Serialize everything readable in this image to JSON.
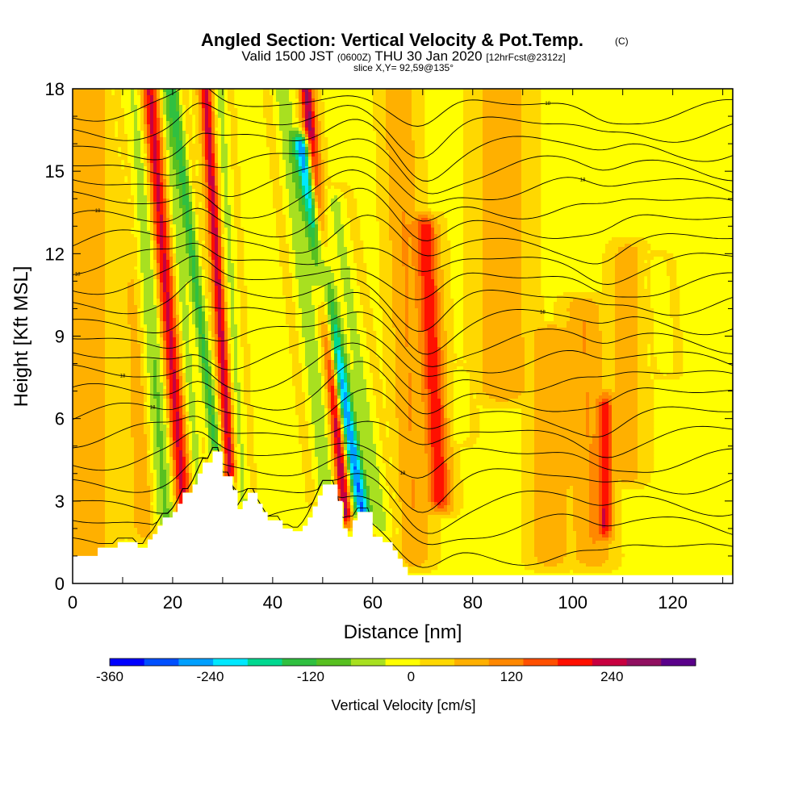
{
  "chart_data": {
    "type": "heatmap",
    "title": "Angled Section: Vertical Velocity & Pot.Temp.",
    "title_unit": "(C)",
    "subtitle_parts": [
      "Valid 1500 JST",
      "(0600Z)",
      "THU 30 Jan 2020",
      "[12hrFcst@2312z]"
    ],
    "slice_text": "slice X,Y= 92,59@135°",
    "xlabel": "Distance [nm]",
    "ylabel": "Height [Kft MSL]",
    "xlim": [
      0,
      132
    ],
    "ylim": [
      0,
      18
    ],
    "x_ticks": [
      "0",
      "20",
      "40",
      "60",
      "80",
      "100",
      "120"
    ],
    "y_ticks": [
      "0",
      "3",
      "6",
      "9",
      "12",
      "15",
      "18"
    ],
    "colorbar": {
      "label": "Vertical Velocity [cm/s]",
      "tick_labels": [
        "-360",
        "-240",
        "-120",
        "0",
        "120",
        "240"
      ],
      "range": [
        -360,
        300
      ],
      "step": 40,
      "colors": [
        "#0000ff",
        "#0050ff",
        "#00a0ff",
        "#00e8ff",
        "#00d890",
        "#30c040",
        "#58c020",
        "#a8e020",
        "#ffff00",
        "#ffd800",
        "#ffb000",
        "#ff8800",
        "#ff5000",
        "#ff1000",
        "#c80040",
        "#901060",
        "#5a008a"
      ]
    },
    "background_color": "#ffff00",
    "velocity_features": [
      {
        "x": 22.5,
        "z_bottom": 2.0,
        "z_top": 18,
        "tilt": 0.45,
        "width": 1.7,
        "peak": 200
      },
      {
        "x": 19.0,
        "z_bottom": 2.0,
        "z_top": 18,
        "tilt": 0.45,
        "width": 2.4,
        "peak": -110
      },
      {
        "x": 14.5,
        "z_bottom": 2.0,
        "z_top": 18,
        "tilt": 0.2,
        "width": 2.0,
        "peak": 50
      },
      {
        "x": 25.5,
        "z_bottom": 2.5,
        "z_top": 18,
        "tilt": 0.45,
        "width": 1.3,
        "peak": -80
      },
      {
        "x": 31.5,
        "z_bottom": 4.0,
        "z_top": 18,
        "tilt": 0.35,
        "width": 1.2,
        "peak": 200
      },
      {
        "x": 28.8,
        "z_bottom": 4.5,
        "z_top": 18,
        "tilt": 0.65,
        "width": 1.3,
        "peak": -150
      },
      {
        "x": 34.0,
        "z_bottom": 3.0,
        "z_top": 18,
        "tilt": 0.3,
        "width": 1.4,
        "peak": -70
      },
      {
        "x": 54.5,
        "z_bottom": 2.5,
        "z_top": 18,
        "tilt": 0.5,
        "width": 1.3,
        "peak": 230
      },
      {
        "x": 58.0,
        "z_bottom": 2.5,
        "z_top": 16,
        "tilt": 0.9,
        "width": 1.6,
        "peak": -300
      },
      {
        "x": 51.0,
        "z_bottom": 3.0,
        "z_top": 18,
        "tilt": 0.6,
        "width": 2.0,
        "peak": -90
      },
      {
        "x": 62.0,
        "z_bottom": 2.0,
        "z_top": 14,
        "tilt": 0.8,
        "width": 2.0,
        "peak": -70
      },
      {
        "x": 73.5,
        "z_bottom": 3.0,
        "z_top": 13,
        "tilt": 0.3,
        "width": 2.0,
        "peak": 170
      },
      {
        "x": 68.5,
        "z_bottom": 1.0,
        "z_top": 18,
        "tilt": 0.2,
        "width": 2.5,
        "peak": 60
      },
      {
        "x": 77.5,
        "z_bottom": 5.5,
        "z_top": 7.5,
        "tilt": 0.0,
        "width": 1.8,
        "peak": -60
      },
      {
        "x": 106.5,
        "z_bottom": 2.0,
        "z_top": 6.5,
        "tilt": 0.0,
        "width": 1.3,
        "peak": 160
      },
      {
        "x": 104.0,
        "z_bottom": 1.0,
        "z_top": 10,
        "tilt": 0.2,
        "width": 3.0,
        "peak": 60
      },
      {
        "x": 118.5,
        "z_bottom": 8.0,
        "z_top": 11.5,
        "tilt": 0.4,
        "width": 1.8,
        "peak": -60
      },
      {
        "x": 3.0,
        "z_bottom": 1.0,
        "z_top": 18,
        "tilt": 0.0,
        "width": 3.5,
        "peak": 50
      },
      {
        "x": 86.0,
        "z_bottom": 7.0,
        "z_top": 18,
        "tilt": 0.0,
        "width": 4.0,
        "peak": 50
      },
      {
        "x": 95.5,
        "z_bottom": 1.0,
        "z_top": 9.0,
        "tilt": 0.0,
        "width": 3.0,
        "peak": 55
      },
      {
        "x": 111.0,
        "z_bottom": 4.0,
        "z_top": 12,
        "tilt": 0.0,
        "width": 2.5,
        "peak": 45
      }
    ],
    "terrain": [
      [
        0,
        1.0
      ],
      [
        5,
        1.0
      ],
      [
        5,
        1.3
      ],
      [
        9,
        1.3
      ],
      [
        9,
        1.5
      ],
      [
        13,
        1.5
      ],
      [
        13,
        1.3
      ],
      [
        15,
        1.3
      ],
      [
        15,
        1.6
      ],
      [
        16,
        1.6
      ],
      [
        16,
        1.8
      ],
      [
        17,
        1.8
      ],
      [
        17,
        2.1
      ],
      [
        18,
        2.1
      ],
      [
        18,
        2.4
      ],
      [
        20,
        2.4
      ],
      [
        20,
        2.6
      ],
      [
        21,
        2.6
      ],
      [
        21,
        2.9
      ],
      [
        22,
        2.9
      ],
      [
        22,
        3.3
      ],
      [
        24,
        3.3
      ],
      [
        24,
        3.6
      ],
      [
        25,
        3.6
      ],
      [
        25,
        4.0
      ],
      [
        26,
        4.0
      ],
      [
        26,
        4.4
      ],
      [
        28,
        4.4
      ],
      [
        28,
        4.8
      ],
      [
        30,
        4.8
      ],
      [
        30,
        3.9
      ],
      [
        32,
        3.9
      ],
      [
        32,
        3.4
      ],
      [
        33,
        3.4
      ],
      [
        33,
        2.7
      ],
      [
        34,
        2.7
      ],
      [
        34,
        3.0
      ],
      [
        35,
        3.0
      ],
      [
        35,
        3.3
      ],
      [
        37,
        3.3
      ],
      [
        37,
        2.9
      ],
      [
        38,
        2.9
      ],
      [
        38,
        2.6
      ],
      [
        39,
        2.6
      ],
      [
        39,
        2.3
      ],
      [
        42,
        2.3
      ],
      [
        42,
        2.0
      ],
      [
        44,
        2.0
      ],
      [
        44,
        1.9
      ],
      [
        46,
        1.9
      ],
      [
        46,
        2.1
      ],
      [
        47,
        2.1
      ],
      [
        47,
        2.4
      ],
      [
        48,
        2.4
      ],
      [
        48,
        2.8
      ],
      [
        49,
        2.8
      ],
      [
        49,
        3.2
      ],
      [
        50,
        3.2
      ],
      [
        50,
        3.6
      ],
      [
        53,
        3.6
      ],
      [
        53,
        3.0
      ],
      [
        54,
        3.0
      ],
      [
        54,
        2.0
      ],
      [
        55,
        2.0
      ],
      [
        55,
        1.7
      ],
      [
        56,
        1.7
      ],
      [
        56,
        2.3
      ],
      [
        57,
        2.3
      ],
      [
        57,
        2.6
      ],
      [
        60,
        2.6
      ],
      [
        60,
        1.7
      ],
      [
        62,
        1.7
      ],
      [
        62,
        1.5
      ],
      [
        64,
        1.5
      ],
      [
        64,
        1.2
      ],
      [
        65,
        1.2
      ],
      [
        65,
        0.9
      ],
      [
        66,
        0.9
      ],
      [
        66,
        0.6
      ],
      [
        67,
        0.6
      ],
      [
        67,
        0.3
      ],
      [
        132,
        0.3
      ]
    ],
    "isentropes": [
      {
        "base": 1.2,
        "label": "",
        "label_x": 0
      },
      {
        "base": 2.2,
        "label": "",
        "label_x": 0
      },
      {
        "base": 3.0,
        "label": "",
        "label_x": 0
      },
      {
        "base": 3.8,
        "label": "",
        "label_x": 0
      },
      {
        "base": 4.6,
        "label": "18",
        "label_x": 66
      },
      {
        "base": 5.4,
        "label": "",
        "label_x": 0
      },
      {
        "base": 6.1,
        "label": "18",
        "label_x": 16
      },
      {
        "base": 6.8,
        "label": "",
        "label_x": 0
      },
      {
        "base": 7.5,
        "label": "18",
        "label_x": 10
      },
      {
        "base": 8.2,
        "label": "",
        "label_x": 0
      },
      {
        "base": 8.9,
        "label": "",
        "label_x": 0
      },
      {
        "base": 9.6,
        "label": "18",
        "label_x": 94
      },
      {
        "base": 10.3,
        "label": "",
        "label_x": 0
      },
      {
        "base": 11.0,
        "label": "",
        "label_x": 0
      },
      {
        "base": 11.7,
        "label": "18",
        "label_x": 1
      },
      {
        "base": 12.4,
        "label": "",
        "label_x": 0
      },
      {
        "base": 13.1,
        "label": "18",
        "label_x": 5
      },
      {
        "base": 13.8,
        "label": "",
        "label_x": 0
      },
      {
        "base": 14.5,
        "label": "18",
        "label_x": 102
      },
      {
        "base": 15.2,
        "label": "",
        "label_x": 0
      },
      {
        "base": 15.9,
        "label": "",
        "label_x": 0
      },
      {
        "base": 16.6,
        "label": "",
        "label_x": 0
      },
      {
        "base": 17.3,
        "label": "18",
        "label_x": 95
      }
    ]
  }
}
